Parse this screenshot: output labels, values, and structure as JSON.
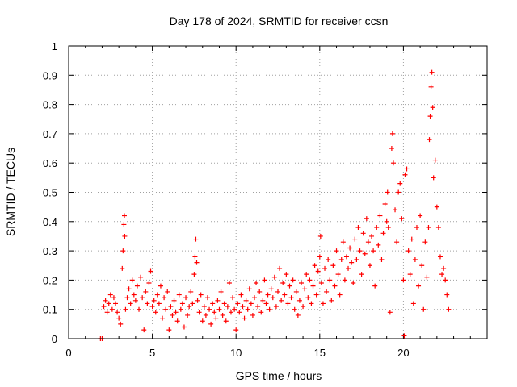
{
  "chart_data": {
    "type": "scatter",
    "title": "Day 178 of 2024, SRMTID for receiver ccsn",
    "xlabel": "GPS time / hours",
    "ylabel": "SRMTID / TECUs",
    "xlim": [
      0,
      25
    ],
    "ylim": [
      0,
      1
    ],
    "x_ticks": [
      0,
      5,
      10,
      15,
      20
    ],
    "x_tick_labels": [
      "0",
      "5",
      "10",
      "15",
      "20"
    ],
    "y_ticks": [
      0,
      0.1,
      0.2,
      0.3,
      0.4,
      0.5,
      0.6,
      0.7,
      0.8,
      0.9,
      1
    ],
    "y_tick_labels": [
      "0",
      "0.1",
      "0.2",
      "0.3",
      "0.4",
      "0.5",
      "0.6",
      "0.7",
      "0.8",
      "0.9",
      "1"
    ],
    "grid": true,
    "marker": "+",
    "series_color": "#ff0000",
    "series": [
      {
        "name": "SRMTID",
        "points": [
          [
            1.9,
            0.0
          ],
          [
            2.0,
            0.0
          ],
          [
            2.1,
            0.11
          ],
          [
            2.2,
            0.13
          ],
          [
            2.3,
            0.09
          ],
          [
            2.4,
            0.12
          ],
          [
            2.5,
            0.15
          ],
          [
            2.6,
            0.1
          ],
          [
            2.7,
            0.14
          ],
          [
            2.8,
            0.12
          ],
          [
            2.9,
            0.09
          ],
          [
            3.0,
            0.07
          ],
          [
            3.1,
            0.05
          ],
          [
            3.2,
            0.24
          ],
          [
            3.25,
            0.3
          ],
          [
            3.3,
            0.39
          ],
          [
            3.33,
            0.42
          ],
          [
            3.35,
            0.35
          ],
          [
            3.4,
            0.1
          ],
          [
            3.5,
            0.14
          ],
          [
            3.6,
            0.17
          ],
          [
            3.7,
            0.12
          ],
          [
            3.8,
            0.2
          ],
          [
            3.9,
            0.15
          ],
          [
            4.0,
            0.13
          ],
          [
            4.1,
            0.18
          ],
          [
            4.2,
            0.1
          ],
          [
            4.3,
            0.21
          ],
          [
            4.4,
            0.14
          ],
          [
            4.5,
            0.03
          ],
          [
            4.6,
            0.16
          ],
          [
            4.7,
            0.12
          ],
          [
            4.8,
            0.19
          ],
          [
            4.9,
            0.23
          ],
          [
            5.0,
            0.11
          ],
          [
            5.1,
            0.13
          ],
          [
            5.2,
            0.09
          ],
          [
            5.3,
            0.15
          ],
          [
            5.4,
            0.12
          ],
          [
            5.5,
            0.18
          ],
          [
            5.6,
            0.07
          ],
          [
            5.7,
            0.14
          ],
          [
            5.8,
            0.1
          ],
          [
            5.9,
            0.16
          ],
          [
            6.0,
            0.03
          ],
          [
            6.1,
            0.11
          ],
          [
            6.2,
            0.08
          ],
          [
            6.3,
            0.13
          ],
          [
            6.4,
            0.09
          ],
          [
            6.5,
            0.06
          ],
          [
            6.6,
            0.15
          ],
          [
            6.7,
            0.1
          ],
          [
            6.8,
            0.12
          ],
          [
            6.9,
            0.04
          ],
          [
            7.0,
            0.14
          ],
          [
            7.1,
            0.08
          ],
          [
            7.2,
            0.11
          ],
          [
            7.3,
            0.16
          ],
          [
            7.4,
            0.12
          ],
          [
            7.5,
            0.22
          ],
          [
            7.55,
            0.28
          ],
          [
            7.6,
            0.34
          ],
          [
            7.65,
            0.26
          ],
          [
            7.7,
            0.13
          ],
          [
            7.8,
            0.09
          ],
          [
            7.9,
            0.15
          ],
          [
            8.0,
            0.06
          ],
          [
            8.1,
            0.11
          ],
          [
            8.2,
            0.08
          ],
          [
            8.3,
            0.14
          ],
          [
            8.4,
            0.1
          ],
          [
            8.5,
            0.05
          ],
          [
            8.6,
            0.12
          ],
          [
            8.7,
            0.09
          ],
          [
            8.8,
            0.07
          ],
          [
            8.9,
            0.13
          ],
          [
            9.0,
            0.1
          ],
          [
            9.1,
            0.16
          ],
          [
            9.2,
            0.08
          ],
          [
            9.3,
            0.12
          ],
          [
            9.4,
            0.06
          ],
          [
            9.5,
            0.11
          ],
          [
            9.6,
            0.19
          ],
          [
            9.7,
            0.09
          ],
          [
            9.8,
            0.14
          ],
          [
            9.9,
            0.1
          ],
          [
            10.0,
            0.03
          ],
          [
            10.1,
            0.12
          ],
          [
            10.2,
            0.09
          ],
          [
            10.3,
            0.15
          ],
          [
            10.4,
            0.11
          ],
          [
            10.5,
            0.07
          ],
          [
            10.6,
            0.13
          ],
          [
            10.7,
            0.1
          ],
          [
            10.8,
            0.17
          ],
          [
            10.9,
            0.12
          ],
          [
            11.0,
            0.08
          ],
          [
            11.1,
            0.14
          ],
          [
            11.2,
            0.19
          ],
          [
            11.3,
            0.11
          ],
          [
            11.4,
            0.16
          ],
          [
            11.5,
            0.09
          ],
          [
            11.6,
            0.13
          ],
          [
            11.7,
            0.2
          ],
          [
            11.8,
            0.12
          ],
          [
            11.9,
            0.15
          ],
          [
            12.0,
            0.1
          ],
          [
            12.1,
            0.17
          ],
          [
            12.2,
            0.14
          ],
          [
            12.3,
            0.21
          ],
          [
            12.4,
            0.11
          ],
          [
            12.5,
            0.16
          ],
          [
            12.6,
            0.24
          ],
          [
            12.7,
            0.13
          ],
          [
            12.8,
            0.19
          ],
          [
            12.9,
            0.15
          ],
          [
            13.0,
            0.22
          ],
          [
            13.1,
            0.12
          ],
          [
            13.2,
            0.18
          ],
          [
            13.3,
            0.14
          ],
          [
            13.4,
            0.2
          ],
          [
            13.5,
            0.1
          ],
          [
            13.6,
            0.16
          ],
          [
            13.7,
            0.08
          ],
          [
            13.8,
            0.13
          ],
          [
            13.9,
            0.19
          ],
          [
            14.0,
            0.11
          ],
          [
            14.1,
            0.17
          ],
          [
            14.2,
            0.22
          ],
          [
            14.3,
            0.14
          ],
          [
            14.4,
            0.2
          ],
          [
            14.5,
            0.12
          ],
          [
            14.6,
            0.18
          ],
          [
            14.7,
            0.25
          ],
          [
            14.8,
            0.15
          ],
          [
            14.9,
            0.23
          ],
          [
            15.0,
            0.28
          ],
          [
            15.05,
            0.35
          ],
          [
            15.1,
            0.19
          ],
          [
            15.2,
            0.12
          ],
          [
            15.3,
            0.24
          ],
          [
            15.4,
            0.16
          ],
          [
            15.5,
            0.27
          ],
          [
            15.6,
            0.2
          ],
          [
            15.7,
            0.13
          ],
          [
            15.8,
            0.25
          ],
          [
            15.9,
            0.18
          ],
          [
            16.0,
            0.3
          ],
          [
            16.1,
            0.22
          ],
          [
            16.2,
            0.15
          ],
          [
            16.3,
            0.27
          ],
          [
            16.4,
            0.33
          ],
          [
            16.5,
            0.2
          ],
          [
            16.6,
            0.28
          ],
          [
            16.7,
            0.24
          ],
          [
            16.8,
            0.31
          ],
          [
            16.9,
            0.26
          ],
          [
            17.0,
            0.19
          ],
          [
            17.1,
            0.34
          ],
          [
            17.2,
            0.27
          ],
          [
            17.3,
            0.38
          ],
          [
            17.4,
            0.3
          ],
          [
            17.5,
            0.22
          ],
          [
            17.6,
            0.36
          ],
          [
            17.7,
            0.29
          ],
          [
            17.8,
            0.41
          ],
          [
            17.9,
            0.33
          ],
          [
            18.0,
            0.25
          ],
          [
            18.1,
            0.35
          ],
          [
            18.2,
            0.3
          ],
          [
            18.3,
            0.18
          ],
          [
            18.4,
            0.38
          ],
          [
            18.5,
            0.32
          ],
          [
            18.6,
            0.42
          ],
          [
            18.7,
            0.27
          ],
          [
            18.8,
            0.36
          ],
          [
            18.9,
            0.46
          ],
          [
            19.0,
            0.4
          ],
          [
            19.05,
            0.5
          ],
          [
            19.1,
            0.38
          ],
          [
            19.2,
            0.09
          ],
          [
            19.3,
            0.65
          ],
          [
            19.35,
            0.7
          ],
          [
            19.4,
            0.6
          ],
          [
            19.5,
            0.44
          ],
          [
            19.6,
            0.33
          ],
          [
            19.7,
            0.5
          ],
          [
            19.8,
            0.53
          ],
          [
            19.9,
            0.41
          ],
          [
            20.0,
            0.2
          ],
          [
            20.05,
            0.01
          ],
          [
            20.1,
            0.56
          ],
          [
            20.2,
            0.58
          ],
          [
            20.3,
            0.3
          ],
          [
            20.4,
            0.22
          ],
          [
            20.5,
            0.34
          ],
          [
            20.6,
            0.12
          ],
          [
            20.7,
            0.27
          ],
          [
            20.8,
            0.38
          ],
          [
            20.9,
            0.18
          ],
          [
            21.0,
            0.42
          ],
          [
            21.1,
            0.25
          ],
          [
            21.2,
            0.1
          ],
          [
            21.3,
            0.33
          ],
          [
            21.4,
            0.21
          ],
          [
            21.5,
            0.38
          ],
          [
            21.55,
            0.68
          ],
          [
            21.6,
            0.76
          ],
          [
            21.65,
            0.86
          ],
          [
            21.7,
            0.91
          ],
          [
            21.75,
            0.79
          ],
          [
            21.8,
            0.55
          ],
          [
            21.9,
            0.61
          ],
          [
            22.0,
            0.45
          ],
          [
            22.1,
            0.38
          ],
          [
            22.2,
            0.28
          ],
          [
            22.3,
            0.22
          ],
          [
            22.4,
            0.24
          ],
          [
            22.5,
            0.2
          ],
          [
            22.6,
            0.15
          ],
          [
            22.7,
            0.1
          ]
        ]
      }
    ]
  }
}
